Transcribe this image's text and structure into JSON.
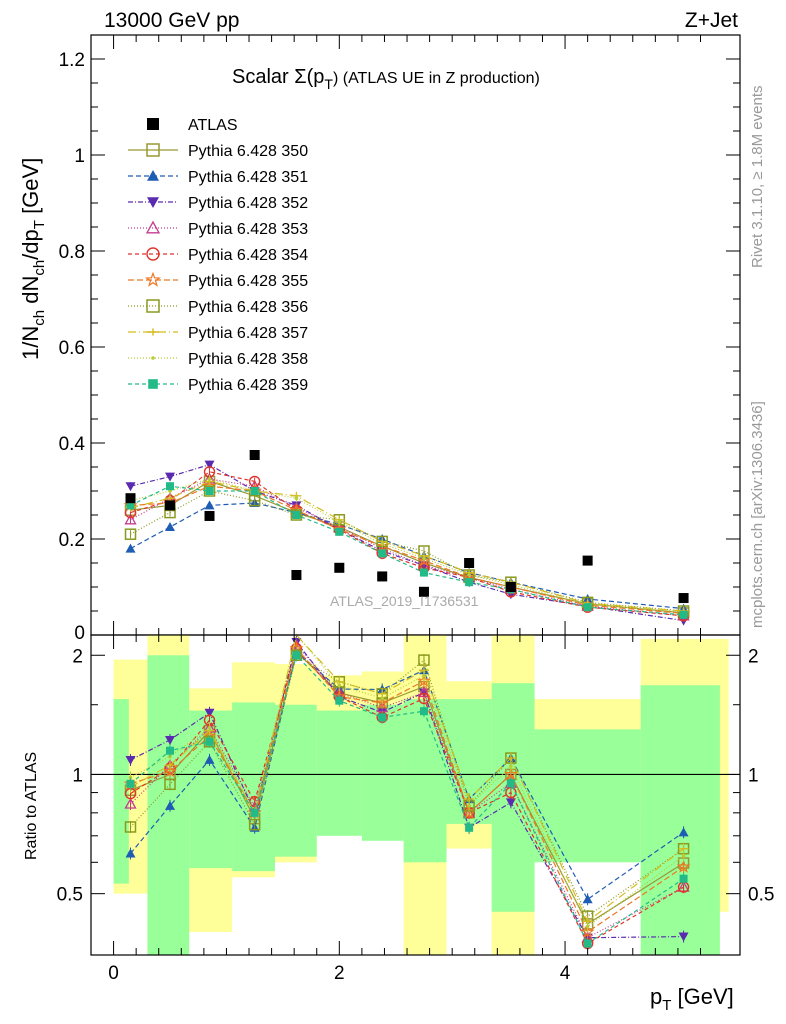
{
  "header": {
    "left": "13000 GeV pp",
    "right": "Z+Jet"
  },
  "side_labels": {
    "rivet": "Rivet 3.1.10, ≥ 1.8M events",
    "mcplots": "mcplots.cern.ch [arXiv:1306.3436]"
  },
  "chart_data": {
    "type": "scatter",
    "title_prefix": "Scalar Σ(p",
    "title_sub": "T",
    "title_suffix": ") (ATLAS UE in Z production)",
    "watermark": "ATLAS_2019_I1736531",
    "xlabel": "p",
    "xlabel_sub": "T",
    "xlabel_unit": " [GeV]",
    "ylabel_main": "1/N",
    "ylabel_sub1": "ch",
    "ylabel_mid": " dN",
    "ylabel_sub2": "ch",
    "ylabel_mid2": "/dp",
    "ylabel_sub3": "T",
    "ylabel_unit": " [GeV]",
    "ratio_ylabel": "Ratio to ATLAS",
    "xlim": [
      -0.2,
      5.55
    ],
    "ylim": [
      0,
      1.25
    ],
    "ratio_ylim": [
      0.35,
      2.25
    ],
    "x_ticks": [
      0,
      2,
      4
    ],
    "x_tick_labels": [
      "0",
      "2",
      "4"
    ],
    "y_ticks": [
      0.2,
      0.4,
      0.6,
      0.8,
      1,
      1.2
    ],
    "y_tick_labels": [
      "0.2",
      "0.4",
      "0.6",
      "0.8",
      "1",
      "1.2"
    ],
    "y_zero_label": "0",
    "ratio_ticks": [
      0.5,
      1,
      2
    ],
    "ratio_tick_labels": [
      "0.5",
      "1",
      "2"
    ],
    "x": [
      0.15,
      0.5,
      0.85,
      1.25,
      1.62,
      2.0,
      2.38,
      2.75,
      3.15,
      3.52,
      4.2,
      5.05
    ],
    "bin_edges": [
      0.0,
      0.3,
      0.67,
      1.05,
      1.43,
      1.8,
      2.2,
      2.57,
      2.95,
      3.35,
      3.73,
      4.67,
      5.45
    ],
    "atlas": {
      "name": "ATLAS",
      "values": [
        0.285,
        0.27,
        0.248,
        0.375,
        0.125,
        0.14,
        0.122,
        0.09,
        0.15,
        0.1,
        0.155,
        0.077
      ]
    },
    "band_yellow": [
      [
        0.5,
        1.95
      ],
      [
        0.35,
        2.25
      ],
      [
        0.4,
        1.65
      ],
      [
        0.55,
        1.92
      ],
      [
        0.6,
        1.9
      ],
      [
        0.72,
        1.78
      ],
      [
        0.7,
        1.82
      ],
      [
        0.35,
        2.25
      ],
      [
        0.65,
        1.72
      ],
      [
        0.35,
        2.25
      ],
      [
        0.8,
        1.55
      ],
      [
        0.45,
        2.2
      ]
    ],
    "band_green": [
      [
        0.53,
        1.55
      ],
      [
        0.35,
        2.0
      ],
      [
        0.58,
        1.45
      ],
      [
        0.57,
        1.52
      ],
      [
        0.62,
        1.5
      ],
      [
        0.7,
        1.45
      ],
      [
        0.68,
        1.5
      ],
      [
        0.6,
        1.55
      ],
      [
        0.75,
        1.55
      ],
      [
        0.45,
        1.7
      ],
      [
        0.6,
        1.3
      ],
      [
        0.35,
        1.68
      ]
    ],
    "series": [
      {
        "name": "Pythia 6.428 350",
        "color": "#999933",
        "marker": "square-open",
        "dash": "",
        "values": [
          0.26,
          0.27,
          0.32,
          0.29,
          0.255,
          0.225,
          0.185,
          0.15,
          0.12,
          0.1,
          0.065,
          0.046
        ]
      },
      {
        "name": "Pythia 6.428 351",
        "color": "#1f5cb3",
        "marker": "triangle-up",
        "dash": "5,3",
        "values": [
          0.18,
          0.225,
          0.27,
          0.275,
          0.255,
          0.23,
          0.2,
          0.165,
          0.13,
          0.11,
          0.075,
          0.055
        ]
      },
      {
        "name": "Pythia 6.428 352",
        "color": "#5a2bb0",
        "marker": "triangle-down",
        "dash": "5,2,1,2",
        "values": [
          0.31,
          0.33,
          0.355,
          0.3,
          0.27,
          0.22,
          0.175,
          0.145,
          0.11,
          0.085,
          0.06,
          0.03
        ]
      },
      {
        "name": "Pythia 6.428 353",
        "color": "#c43c8f",
        "marker": "triangle-open",
        "dash": "1,2",
        "values": [
          0.24,
          0.285,
          0.325,
          0.31,
          0.265,
          0.225,
          0.18,
          0.145,
          0.12,
          0.095,
          0.06,
          0.04
        ]
      },
      {
        "name": "Pythia 6.428 354",
        "color": "#e0332a",
        "marker": "circle-open",
        "dash": "4,3",
        "values": [
          0.255,
          0.28,
          0.34,
          0.32,
          0.26,
          0.22,
          0.17,
          0.14,
          0.12,
          0.09,
          0.058,
          0.04
        ]
      },
      {
        "name": "Pythia 6.428 355",
        "color": "#ee7722",
        "marker": "star-open",
        "dash": "6,3",
        "values": [
          0.27,
          0.275,
          0.31,
          0.3,
          0.26,
          0.22,
          0.185,
          0.155,
          0.12,
          0.1,
          0.062,
          0.045
        ]
      },
      {
        "name": "Pythia 6.428 356",
        "color": "#8a9a1e",
        "marker": "square-open",
        "dash": "1,2",
        "values": [
          0.21,
          0.255,
          0.3,
          0.28,
          0.25,
          0.24,
          0.195,
          0.175,
          0.125,
          0.11,
          0.068,
          0.05
        ]
      },
      {
        "name": "Pythia 6.428 357",
        "color": "#d4bb1e",
        "marker": "cross-tri",
        "dash": "8,3,1,3",
        "values": [
          0.265,
          0.285,
          0.32,
          0.3,
          0.29,
          0.24,
          0.195,
          0.165,
          0.13,
          0.11,
          0.066,
          0.05
        ]
      },
      {
        "name": "Pythia 6.428 358",
        "color": "#b9cc33",
        "marker": "dot",
        "dash": "1,2",
        "values": [
          0.28,
          0.3,
          0.325,
          0.3,
          0.285,
          0.235,
          0.19,
          0.16,
          0.125,
          0.105,
          0.064,
          0.048
        ]
      },
      {
        "name": "Pythia 6.428 359",
        "color": "#22bb88",
        "marker": "square-fill",
        "dash": "4,3",
        "values": [
          0.27,
          0.31,
          0.3,
          0.3,
          0.25,
          0.215,
          0.17,
          0.13,
          0.11,
          0.095,
          0.058,
          0.042
        ]
      }
    ]
  }
}
